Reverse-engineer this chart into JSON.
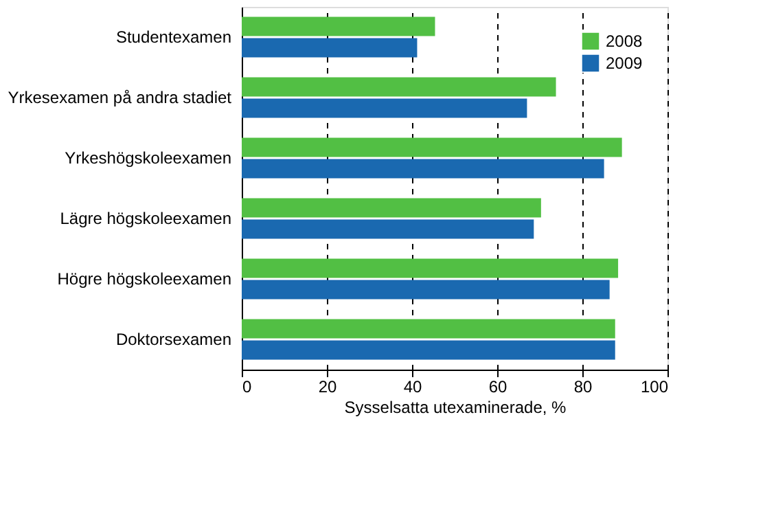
{
  "chart_data": {
    "type": "bar",
    "orientation": "horizontal",
    "xlabel": "Sysselsatta utexaminerade, %",
    "categories": [
      "Studentexamen",
      "Yrkesexamen på andra stadiet",
      "Yrkeshögskoleexamen",
      "Lägre högskoleexamen",
      "Högre högskoleexamen",
      "Doktorsexamen"
    ],
    "series": [
      {
        "name": "2008",
        "color": "#52bf44",
        "values": [
          45.4,
          73.8,
          89.3,
          70.3,
          88.4,
          87.7
        ]
      },
      {
        "name": "2009",
        "color": "#1a69b0",
        "values": [
          41.2,
          67.0,
          85.1,
          68.6,
          86.4,
          87.7
        ]
      }
    ],
    "xlim": [
      0,
      100
    ],
    "xticks": [
      0,
      20,
      40,
      60,
      80,
      100
    ],
    "grid": "x",
    "legend": "top right"
  }
}
